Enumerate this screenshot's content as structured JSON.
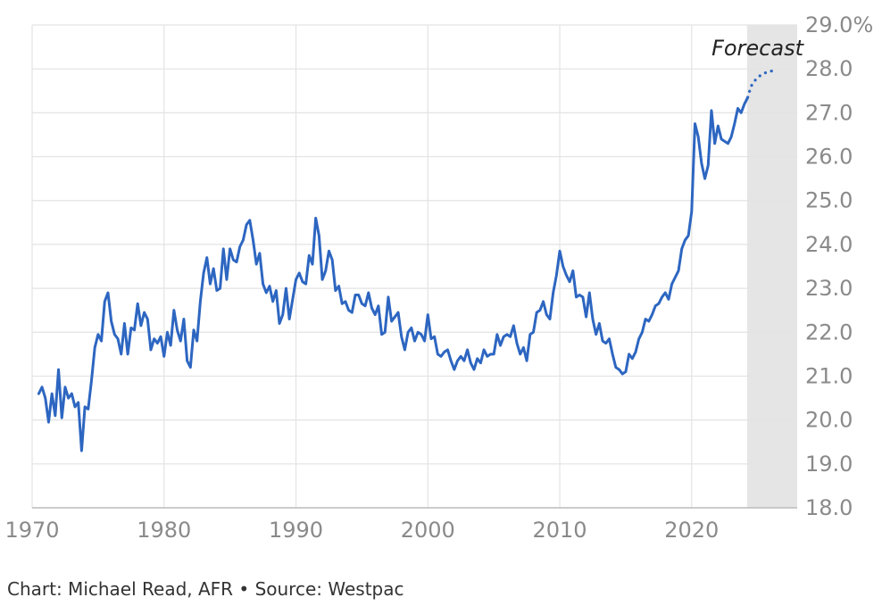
{
  "credit": "Chart: Michael Read, AFR • Source: Westpac",
  "chart_data": {
    "type": "line",
    "title": "",
    "xlabel": "",
    "ylabel": "",
    "xlim": [
      1970,
      2028
    ],
    "ylim": [
      18,
      29
    ],
    "grid": "horizontal-and-vertical",
    "x_ticks": [
      1970,
      1980,
      1990,
      2000,
      2010,
      2020
    ],
    "x_tick_labels": [
      "1970",
      "1980",
      "1990",
      "2000",
      "2010",
      "2020"
    ],
    "y_ticks": [
      18,
      19,
      20,
      21,
      22,
      23,
      24,
      25,
      26,
      27,
      28,
      29
    ],
    "y_tick_labels": [
      "18.0",
      "19.0",
      "20.0",
      "21.0",
      "22.0",
      "23.0",
      "24.0",
      "25.0",
      "26.0",
      "27.0",
      "28.0",
      "29.0%"
    ],
    "colors": {
      "line": "#2d66c1",
      "forecast_band": "#e5e5e5",
      "grid": "#e3e3e3"
    },
    "forecast_region": {
      "label": "Forecast",
      "x_start": 2024.2,
      "x_end": 2028
    },
    "series": [
      {
        "style": "solid",
        "x": [
          1970.5,
          1970.75,
          1971,
          1971.25,
          1971.5,
          1971.75,
          1972,
          1972.25,
          1972.5,
          1972.75,
          1973,
          1973.25,
          1973.5,
          1973.75,
          1974,
          1974.25,
          1974.5,
          1974.75,
          1975,
          1975.25,
          1975.5,
          1975.75,
          1976,
          1976.25,
          1976.5,
          1976.75,
          1977,
          1977.25,
          1977.5,
          1977.75,
          1978,
          1978.25,
          1978.5,
          1978.75,
          1979,
          1979.25,
          1979.5,
          1979.75,
          1980,
          1980.25,
          1980.5,
          1980.75,
          1981,
          1981.25,
          1981.5,
          1981.75,
          1982,
          1982.25,
          1982.5,
          1982.75,
          1983,
          1983.25,
          1983.5,
          1983.75,
          1984,
          1984.25,
          1984.5,
          1984.75,
          1985,
          1985.25,
          1985.5,
          1985.75,
          1986,
          1986.25,
          1986.5,
          1986.75,
          1987,
          1987.25,
          1987.5,
          1987.75,
          1988,
          1988.25,
          1988.5,
          1988.75,
          1989,
          1989.25,
          1989.5,
          1989.75,
          1990,
          1990.25,
          1990.5,
          1990.75,
          1991,
          1991.25,
          1991.5,
          1991.75,
          1992,
          1992.25,
          1992.5,
          1992.75,
          1993,
          1993.25,
          1993.5,
          1993.75,
          1994,
          1994.25,
          1994.5,
          1994.75,
          1995,
          1995.25,
          1995.5,
          1995.75,
          1996,
          1996.25,
          1996.5,
          1996.75,
          1997,
          1997.25,
          1997.5,
          1997.75,
          1998,
          1998.25,
          1998.5,
          1998.75,
          1999,
          1999.25,
          1999.5,
          1999.75,
          2000,
          2000.25,
          2000.5,
          2000.75,
          2001,
          2001.25,
          2001.5,
          2001.75,
          2002,
          2002.25,
          2002.5,
          2002.75,
          2003,
          2003.25,
          2003.5,
          2003.75,
          2004,
          2004.25,
          2004.5,
          2004.75,
          2005,
          2005.25,
          2005.5,
          2005.75,
          2006,
          2006.25,
          2006.5,
          2006.75,
          2007,
          2007.25,
          2007.5,
          2007.75,
          2008,
          2008.25,
          2008.5,
          2008.75,
          2009,
          2009.25,
          2009.5,
          2009.75,
          2010,
          2010.25,
          2010.5,
          2010.75,
          2011,
          2011.25,
          2011.5,
          2011.75,
          2012,
          2012.25,
          2012.5,
          2012.75,
          2013,
          2013.25,
          2013.5,
          2013.75,
          2014,
          2014.25,
          2014.5,
          2014.75,
          2015,
          2015.25,
          2015.5,
          2015.75,
          2016,
          2016.25,
          2016.5,
          2016.75,
          2017,
          2017.25,
          2017.5,
          2017.75,
          2018,
          2018.25,
          2018.5,
          2018.75,
          2019,
          2019.25,
          2019.5,
          2019.75,
          2020,
          2020.25,
          2020.5,
          2020.75,
          2021,
          2021.25,
          2021.5,
          2021.75,
          2022,
          2022.25,
          2022.5,
          2022.75,
          2023,
          2023.25,
          2023.5,
          2023.75,
          2024,
          2024.25
        ],
        "y": [
          20.6,
          20.75,
          20.5,
          19.95,
          20.6,
          20.1,
          21.15,
          20.05,
          20.75,
          20.5,
          20.6,
          20.3,
          20.4,
          19.3,
          20.3,
          20.25,
          20.9,
          21.65,
          21.95,
          21.8,
          22.7,
          22.9,
          22.25,
          21.95,
          21.85,
          21.5,
          22.2,
          21.5,
          22.1,
          22.05,
          22.65,
          22.15,
          22.45,
          22.3,
          21.6,
          21.85,
          21.75,
          21.9,
          21.45,
          22.0,
          21.7,
          22.5,
          22.05,
          21.8,
          22.3,
          21.35,
          21.2,
          22.05,
          21.8,
          22.7,
          23.35,
          23.7,
          23.1,
          23.45,
          22.95,
          23.0,
          23.9,
          23.2,
          23.9,
          23.65,
          23.6,
          23.95,
          24.1,
          24.45,
          24.55,
          24.1,
          23.55,
          23.8,
          23.1,
          22.9,
          23.05,
          22.7,
          22.95,
          22.2,
          22.4,
          23.0,
          22.3,
          22.75,
          23.2,
          23.35,
          23.15,
          23.1,
          23.75,
          23.55,
          24.6,
          24.2,
          23.2,
          23.4,
          23.85,
          23.65,
          22.95,
          23.05,
          22.65,
          22.7,
          22.5,
          22.45,
          22.85,
          22.85,
          22.65,
          22.6,
          22.9,
          22.55,
          22.4,
          22.6,
          21.95,
          22.0,
          22.8,
          22.25,
          22.35,
          22.45,
          21.9,
          21.6,
          22.0,
          22.1,
          21.8,
          22.0,
          21.95,
          21.8,
          22.4,
          21.85,
          21.9,
          21.5,
          21.45,
          21.55,
          21.6,
          21.35,
          21.15,
          21.35,
          21.45,
          21.35,
          21.6,
          21.3,
          21.15,
          21.4,
          21.3,
          21.6,
          21.45,
          21.5,
          21.5,
          21.95,
          21.7,
          21.9,
          21.95,
          21.9,
          22.15,
          21.75,
          21.5,
          21.65,
          21.35,
          21.95,
          22.0,
          22.45,
          22.5,
          22.7,
          22.4,
          22.3,
          22.9,
          23.3,
          23.85,
          23.5,
          23.3,
          23.15,
          23.4,
          22.8,
          22.85,
          22.8,
          22.35,
          22.9,
          22.3,
          21.95,
          22.2,
          21.8,
          21.75,
          21.85,
          21.5,
          21.2,
          21.15,
          21.05,
          21.1,
          21.5,
          21.4,
          21.55,
          21.85,
          22.0,
          22.3,
          22.25,
          22.4,
          22.6,
          22.65,
          22.8,
          22.9,
          22.75,
          23.1,
          23.25,
          23.4,
          23.9,
          24.1,
          24.2,
          24.75,
          26.75,
          26.45,
          25.85,
          25.5,
          25.8,
          27.05,
          26.3,
          26.7,
          26.4,
          26.35,
          26.3,
          26.45,
          26.75,
          27.1,
          27.0,
          27.2,
          27.35
        ]
      },
      {
        "style": "dotted",
        "x": [
          2024.25,
          2024.5,
          2024.75,
          2025,
          2025.25,
          2025.5,
          2025.75,
          2026,
          2026.25
        ],
        "y": [
          27.35,
          27.6,
          27.72,
          27.8,
          27.86,
          27.9,
          27.93,
          27.95,
          27.95
        ]
      }
    ]
  }
}
